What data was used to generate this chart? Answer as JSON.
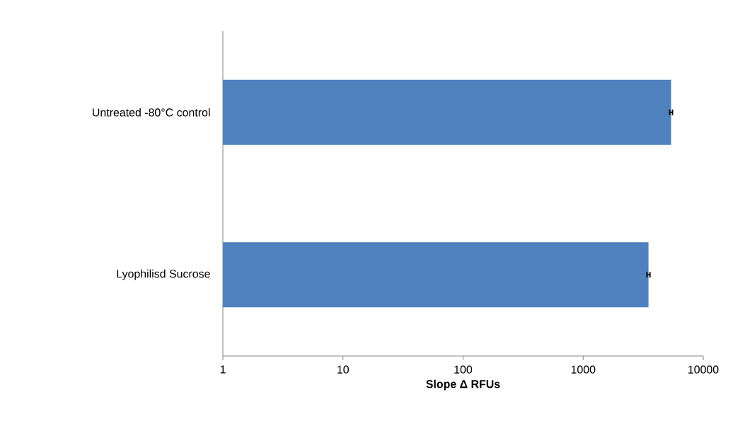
{
  "chart_data": {
    "type": "bar",
    "orientation": "horizontal",
    "xlabel": "Slope Δ RFUs",
    "categories": [
      "Untreated -80°C control",
      "Lyophilisd Sucrose"
    ],
    "values": [
      5400,
      3500
    ],
    "errors": [
      150,
      100
    ],
    "color": "#4f81bd",
    "log": "x",
    "xlim": [
      1,
      10000
    ],
    "xticks": [
      1,
      10,
      100,
      1000,
      10000
    ],
    "grid": false
  }
}
